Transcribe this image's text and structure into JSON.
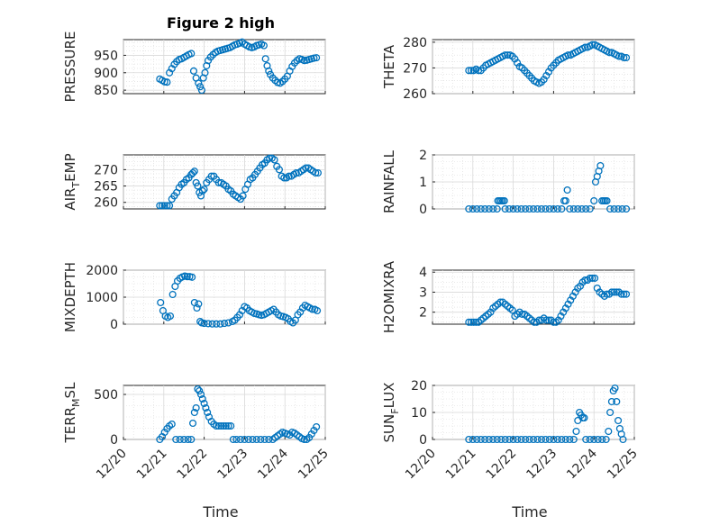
{
  "figure": {
    "title": "Figure 2 high",
    "x_label": "Time",
    "x_ticks": [
      "12/20",
      "12/21",
      "12/22",
      "12/23",
      "12/24",
      "12/25"
    ],
    "marker_color": "#0072BD"
  },
  "chart_data": [
    {
      "type": "scatter",
      "marker": "circle",
      "title": "Figure 2 high",
      "ylabel": "PRESSURE",
      "xlabel": "",
      "xlim": [
        20,
        25
      ],
      "ylim": [
        840,
        995
      ],
      "yticks": [
        850,
        900,
        950
      ],
      "x": [
        20.9,
        20.96,
        21.02,
        21.08,
        21.14,
        21.2,
        21.26,
        21.32,
        21.38,
        21.44,
        21.5,
        21.56,
        21.62,
        21.68,
        21.74,
        21.8,
        21.86,
        21.9,
        21.94,
        21.98,
        22.02,
        22.06,
        22.1,
        22.16,
        22.22,
        22.28,
        22.34,
        22.4,
        22.46,
        22.52,
        22.58,
        22.64,
        22.7,
        22.76,
        22.82,
        22.88,
        22.94,
        23.0,
        23.06,
        23.12,
        23.18,
        23.24,
        23.3,
        23.36,
        23.42,
        23.48,
        23.52,
        23.56,
        23.6,
        23.64,
        23.7,
        23.76,
        23.82,
        23.88,
        23.94,
        24.0,
        24.06,
        24.12,
        24.18,
        24.24,
        24.3,
        24.36,
        24.42,
        24.48,
        24.54,
        24.6,
        24.66,
        24.72,
        24.78
      ],
      "y": [
        882,
        878,
        874,
        873,
        900,
        912,
        924,
        932,
        938,
        940,
        944,
        948,
        952,
        955,
        905,
        885,
        870,
        860,
        850,
        885,
        900,
        920,
        935,
        945,
        952,
        958,
        962,
        964,
        966,
        968,
        970,
        972,
        976,
        980,
        982,
        985,
        988,
        982,
        978,
        974,
        972,
        974,
        978,
        980,
        982,
        978,
        940,
        920,
        905,
        895,
        885,
        878,
        872,
        870,
        875,
        882,
        890,
        905,
        918,
        928,
        935,
        940,
        938,
        935,
        936,
        938,
        940,
        942,
        943
      ]
    },
    {
      "type": "scatter",
      "marker": "circle",
      "ylabel": "THETA",
      "xlabel": "",
      "xlim": [
        20,
        25
      ],
      "ylim": [
        260,
        281
      ],
      "yticks": [
        260,
        270,
        280
      ],
      "x": [
        20.9,
        20.96,
        21.02,
        21.08,
        21.14,
        21.2,
        21.26,
        21.32,
        21.38,
        21.44,
        21.5,
        21.56,
        21.62,
        21.68,
        21.74,
        21.8,
        21.86,
        21.92,
        21.98,
        22.04,
        22.1,
        22.16,
        22.22,
        22.28,
        22.34,
        22.4,
        22.46,
        22.52,
        22.58,
        22.64,
        22.7,
        22.76,
        22.82,
        22.88,
        22.94,
        23.0,
        23.06,
        23.12,
        23.18,
        23.24,
        23.3,
        23.36,
        23.42,
        23.48,
        23.54,
        23.6,
        23.66,
        23.72,
        23.78,
        23.84,
        23.9,
        23.96,
        24.02,
        24.08,
        24.14,
        24.2,
        24.26,
        24.32,
        24.38,
        24.44,
        24.5,
        24.56,
        24.62,
        24.68,
        24.74,
        24.8
      ],
      "y": [
        269,
        269,
        269,
        269.5,
        269,
        269,
        270,
        271,
        271.5,
        272,
        272.5,
        273,
        273.5,
        274,
        274.5,
        275,
        275,
        275,
        274.5,
        273.5,
        272,
        270.5,
        270,
        269,
        268,
        267,
        266,
        265,
        264.5,
        264,
        264.5,
        265.5,
        267,
        268.5,
        270,
        271,
        272,
        273,
        273.5,
        274,
        274.5,
        275,
        275,
        275.5,
        276,
        276.5,
        277,
        277.5,
        278,
        278,
        278.5,
        279,
        279,
        278.5,
        278,
        277.5,
        277,
        276.5,
        276,
        276,
        275.5,
        275,
        274.5,
        274.5,
        274,
        274
      ]
    },
    {
      "type": "scatter",
      "marker": "circle",
      "ylabel": "AIR_TEMP",
      "xlabel": "",
      "xlim": [
        20,
        25
      ],
      "ylim": [
        258,
        274.5
      ],
      "yticks": [
        260,
        265,
        270
      ],
      "x": [
        20.9,
        20.96,
        21.02,
        21.08,
        21.14,
        21.2,
        21.26,
        21.32,
        21.38,
        21.44,
        21.5,
        21.56,
        21.62,
        21.68,
        21.72,
        21.76,
        21.8,
        21.84,
        21.88,
        21.92,
        21.96,
        22.0,
        22.06,
        22.12,
        22.18,
        22.24,
        22.3,
        22.36,
        22.42,
        22.48,
        22.54,
        22.6,
        22.66,
        22.72,
        22.78,
        22.84,
        22.9,
        22.96,
        23.02,
        23.08,
        23.14,
        23.2,
        23.26,
        23.32,
        23.38,
        23.44,
        23.5,
        23.56,
        23.62,
        23.68,
        23.74,
        23.8,
        23.86,
        23.92,
        23.98,
        24.04,
        24.1,
        24.16,
        24.22,
        24.28,
        24.34,
        24.4,
        24.46,
        24.52,
        24.58,
        24.64,
        24.7,
        24.76,
        24.82
      ],
      "y": [
        259,
        259,
        259,
        259,
        259,
        261,
        262,
        263,
        264.5,
        265.5,
        266,
        267,
        267.5,
        268.5,
        269,
        269.5,
        266,
        265,
        263,
        262,
        263.5,
        264,
        266,
        267,
        268,
        268,
        267,
        266,
        266,
        265.5,
        265,
        264,
        263.5,
        262.5,
        262,
        261.5,
        261,
        262,
        264,
        265.5,
        267,
        267.5,
        268.5,
        269.5,
        270.5,
        271.5,
        272,
        273,
        273.5,
        273.5,
        273,
        271,
        270,
        268,
        267.5,
        267.5,
        268,
        268,
        268.5,
        269,
        269,
        269.5,
        270,
        270.5,
        270.5,
        270,
        269.5,
        269,
        269
      ]
    },
    {
      "type": "scatter",
      "marker": "circle",
      "ylabel": "RAINFALL",
      "xlabel": "",
      "xlim": [
        20,
        25
      ],
      "ylim": [
        0,
        2
      ],
      "yticks": [
        0,
        1,
        2
      ],
      "x": [
        20.9,
        21.0,
        21.1,
        21.2,
        21.3,
        21.4,
        21.5,
        21.6,
        21.62,
        21.66,
        21.7,
        21.74,
        21.78,
        21.8,
        21.9,
        22.0,
        22.1,
        22.2,
        22.3,
        22.4,
        22.5,
        22.6,
        22.7,
        22.8,
        22.9,
        23.0,
        23.1,
        23.2,
        23.26,
        23.3,
        23.34,
        23.4,
        23.5,
        23.6,
        23.7,
        23.8,
        23.9,
        24.0,
        24.04,
        24.08,
        24.12,
        24.16,
        24.2,
        24.24,
        24.28,
        24.32,
        24.4,
        24.5,
        24.6,
        24.7,
        24.8
      ],
      "y": [
        0,
        0,
        0,
        0,
        0,
        0,
        0,
        0,
        0.3,
        0.3,
        0.3,
        0.3,
        0.3,
        0,
        0,
        0,
        0,
        0,
        0,
        0,
        0,
        0,
        0,
        0,
        0,
        0,
        0,
        0,
        0.3,
        0.3,
        0.7,
        0,
        0,
        0,
        0,
        0,
        0,
        0.3,
        1.0,
        1.2,
        1.4,
        1.6,
        0.3,
        0.3,
        0.3,
        0.3,
        0,
        0,
        0,
        0,
        0
      ]
    },
    {
      "type": "scatter",
      "marker": "circle",
      "ylabel": "MIXDEPTH",
      "xlabel": "",
      "xlim": [
        20,
        25
      ],
      "ylim": [
        0,
        2000
      ],
      "yticks": [
        0,
        1000,
        2000
      ],
      "x": [
        20.92,
        20.98,
        21.04,
        21.1,
        21.16,
        21.22,
        21.28,
        21.34,
        21.4,
        21.46,
        21.52,
        21.58,
        21.64,
        21.7,
        21.76,
        21.82,
        21.86,
        21.9,
        21.94,
        22.0,
        22.1,
        22.2,
        22.3,
        22.4,
        22.5,
        22.6,
        22.7,
        22.76,
        22.82,
        22.88,
        22.94,
        23.0,
        23.06,
        23.12,
        23.18,
        23.24,
        23.3,
        23.36,
        23.42,
        23.48,
        23.54,
        23.6,
        23.66,
        23.72,
        23.78,
        23.84,
        23.9,
        23.96,
        24.02,
        24.08,
        24.14,
        24.2,
        24.26,
        24.32,
        24.38,
        24.44,
        24.5,
        24.56,
        24.62,
        24.68,
        24.74,
        24.8
      ],
      "y": [
        800,
        500,
        300,
        250,
        300,
        1100,
        1400,
        1600,
        1700,
        1750,
        1780,
        1760,
        1760,
        1740,
        800,
        600,
        750,
        100,
        50,
        30,
        20,
        10,
        10,
        10,
        30,
        50,
        100,
        150,
        250,
        350,
        500,
        650,
        600,
        500,
        450,
        400,
        380,
        350,
        330,
        350,
        400,
        450,
        500,
        550,
        450,
        350,
        300,
        280,
        250,
        200,
        100,
        50,
        150,
        350,
        450,
        600,
        700,
        650,
        600,
        550,
        550,
        500
      ]
    },
    {
      "type": "scatter",
      "marker": "circle",
      "ylabel": "H2OMIXRA",
      "xlabel": "",
      "xlim": [
        20,
        25
      ],
      "ylim": [
        1.4,
        4.1
      ],
      "yticks": [
        2,
        3,
        4
      ],
      "x": [
        20.9,
        20.96,
        21.02,
        21.08,
        21.14,
        21.2,
        21.26,
        21.32,
        21.38,
        21.44,
        21.5,
        21.56,
        21.62,
        21.68,
        21.74,
        21.8,
        21.86,
        21.92,
        21.98,
        22.04,
        22.1,
        22.16,
        22.22,
        22.28,
        22.34,
        22.4,
        22.46,
        22.52,
        22.58,
        22.64,
        22.7,
        22.76,
        22.82,
        22.88,
        22.94,
        23.0,
        23.06,
        23.12,
        23.18,
        23.24,
        23.3,
        23.36,
        23.42,
        23.48,
        23.54,
        23.6,
        23.66,
        23.72,
        23.78,
        23.84,
        23.9,
        23.96,
        24.02,
        24.08,
        24.14,
        24.2,
        24.26,
        24.32,
        24.38,
        24.44,
        24.5,
        24.56,
        24.62,
        24.68,
        24.74,
        24.8
      ],
      "y": [
        1.5,
        1.5,
        1.5,
        1.5,
        1.5,
        1.6,
        1.7,
        1.8,
        1.9,
        2.0,
        2.2,
        2.3,
        2.4,
        2.5,
        2.5,
        2.4,
        2.3,
        2.2,
        2.1,
        1.8,
        1.9,
        2.0,
        1.9,
        1.9,
        1.8,
        1.7,
        1.6,
        1.5,
        1.5,
        1.6,
        1.6,
        1.7,
        1.6,
        1.6,
        1.6,
        1.5,
        1.5,
        1.6,
        1.8,
        2.0,
        2.2,
        2.4,
        2.6,
        2.8,
        3.0,
        3.2,
        3.3,
        3.5,
        3.6,
        3.6,
        3.7,
        3.7,
        3.7,
        3.2,
        3.0,
        2.9,
        2.8,
        2.9,
        2.9,
        3.0,
        3.0,
        3.0,
        3.0,
        2.9,
        2.9,
        2.9
      ]
    },
    {
      "type": "scatter",
      "marker": "circle",
      "ylabel": "TERR_MSL",
      "xlabel": "",
      "xlim": [
        20,
        25
      ],
      "ylim": [
        0,
        600
      ],
      "yticks": [
        0,
        500
      ],
      "x": [
        20.9,
        20.96,
        21.02,
        21.08,
        21.14,
        21.2,
        21.3,
        21.4,
        21.5,
        21.6,
        21.68,
        21.72,
        21.76,
        21.8,
        21.84,
        21.88,
        21.92,
        21.96,
        22.0,
        22.04,
        22.08,
        22.12,
        22.18,
        22.24,
        22.3,
        22.36,
        22.42,
        22.48,
        22.54,
        22.6,
        22.66,
        22.72,
        22.8,
        22.9,
        23.0,
        23.1,
        23.2,
        23.3,
        23.4,
        23.5,
        23.6,
        23.7,
        23.76,
        23.82,
        23.88,
        23.94,
        24.0,
        24.06,
        24.12,
        24.18,
        24.24,
        24.3,
        24.36,
        24.42,
        24.48,
        24.54,
        24.6,
        24.66,
        24.72,
        24.78
      ],
      "y": [
        0,
        30,
        80,
        120,
        150,
        170,
        0,
        0,
        0,
        0,
        0,
        180,
        300,
        350,
        560,
        540,
        500,
        450,
        400,
        350,
        300,
        250,
        200,
        170,
        150,
        150,
        150,
        150,
        150,
        150,
        150,
        0,
        0,
        0,
        0,
        0,
        0,
        0,
        0,
        0,
        0,
        0,
        20,
        40,
        60,
        80,
        70,
        60,
        50,
        80,
        70,
        50,
        30,
        10,
        0,
        0,
        20,
        60,
        100,
        140
      ]
    },
    {
      "type": "scatter",
      "marker": "circle",
      "ylabel": "SUN_FLUX",
      "xlabel": "",
      "xlim": [
        20,
        25
      ],
      "ylim": [
        0,
        20
      ],
      "yticks": [
        0,
        10,
        20
      ],
      "x": [
        20.9,
        21.0,
        21.1,
        21.2,
        21.3,
        21.4,
        21.5,
        21.6,
        21.7,
        21.8,
        21.9,
        22.0,
        22.1,
        22.2,
        22.3,
        22.4,
        22.5,
        22.6,
        22.7,
        22.8,
        22.9,
        23.0,
        23.1,
        23.2,
        23.3,
        23.4,
        23.5,
        23.56,
        23.6,
        23.64,
        23.68,
        23.72,
        23.76,
        23.8,
        23.9,
        24.0,
        24.1,
        24.2,
        24.3,
        24.36,
        24.4,
        24.44,
        24.48,
        24.52,
        24.56,
        24.6,
        24.64,
        24.68,
        24.72
      ],
      "y": [
        0,
        0,
        0,
        0,
        0,
        0,
        0,
        0,
        0,
        0,
        0,
        0,
        0,
        0,
        0,
        0,
        0,
        0,
        0,
        0,
        0,
        0,
        0,
        0,
        0,
        0,
        0,
        3,
        7,
        10,
        9,
        8,
        8,
        0,
        0,
        0,
        0,
        0,
        0,
        3,
        10,
        14,
        18,
        19,
        14,
        7,
        4,
        2,
        0
      ]
    }
  ]
}
